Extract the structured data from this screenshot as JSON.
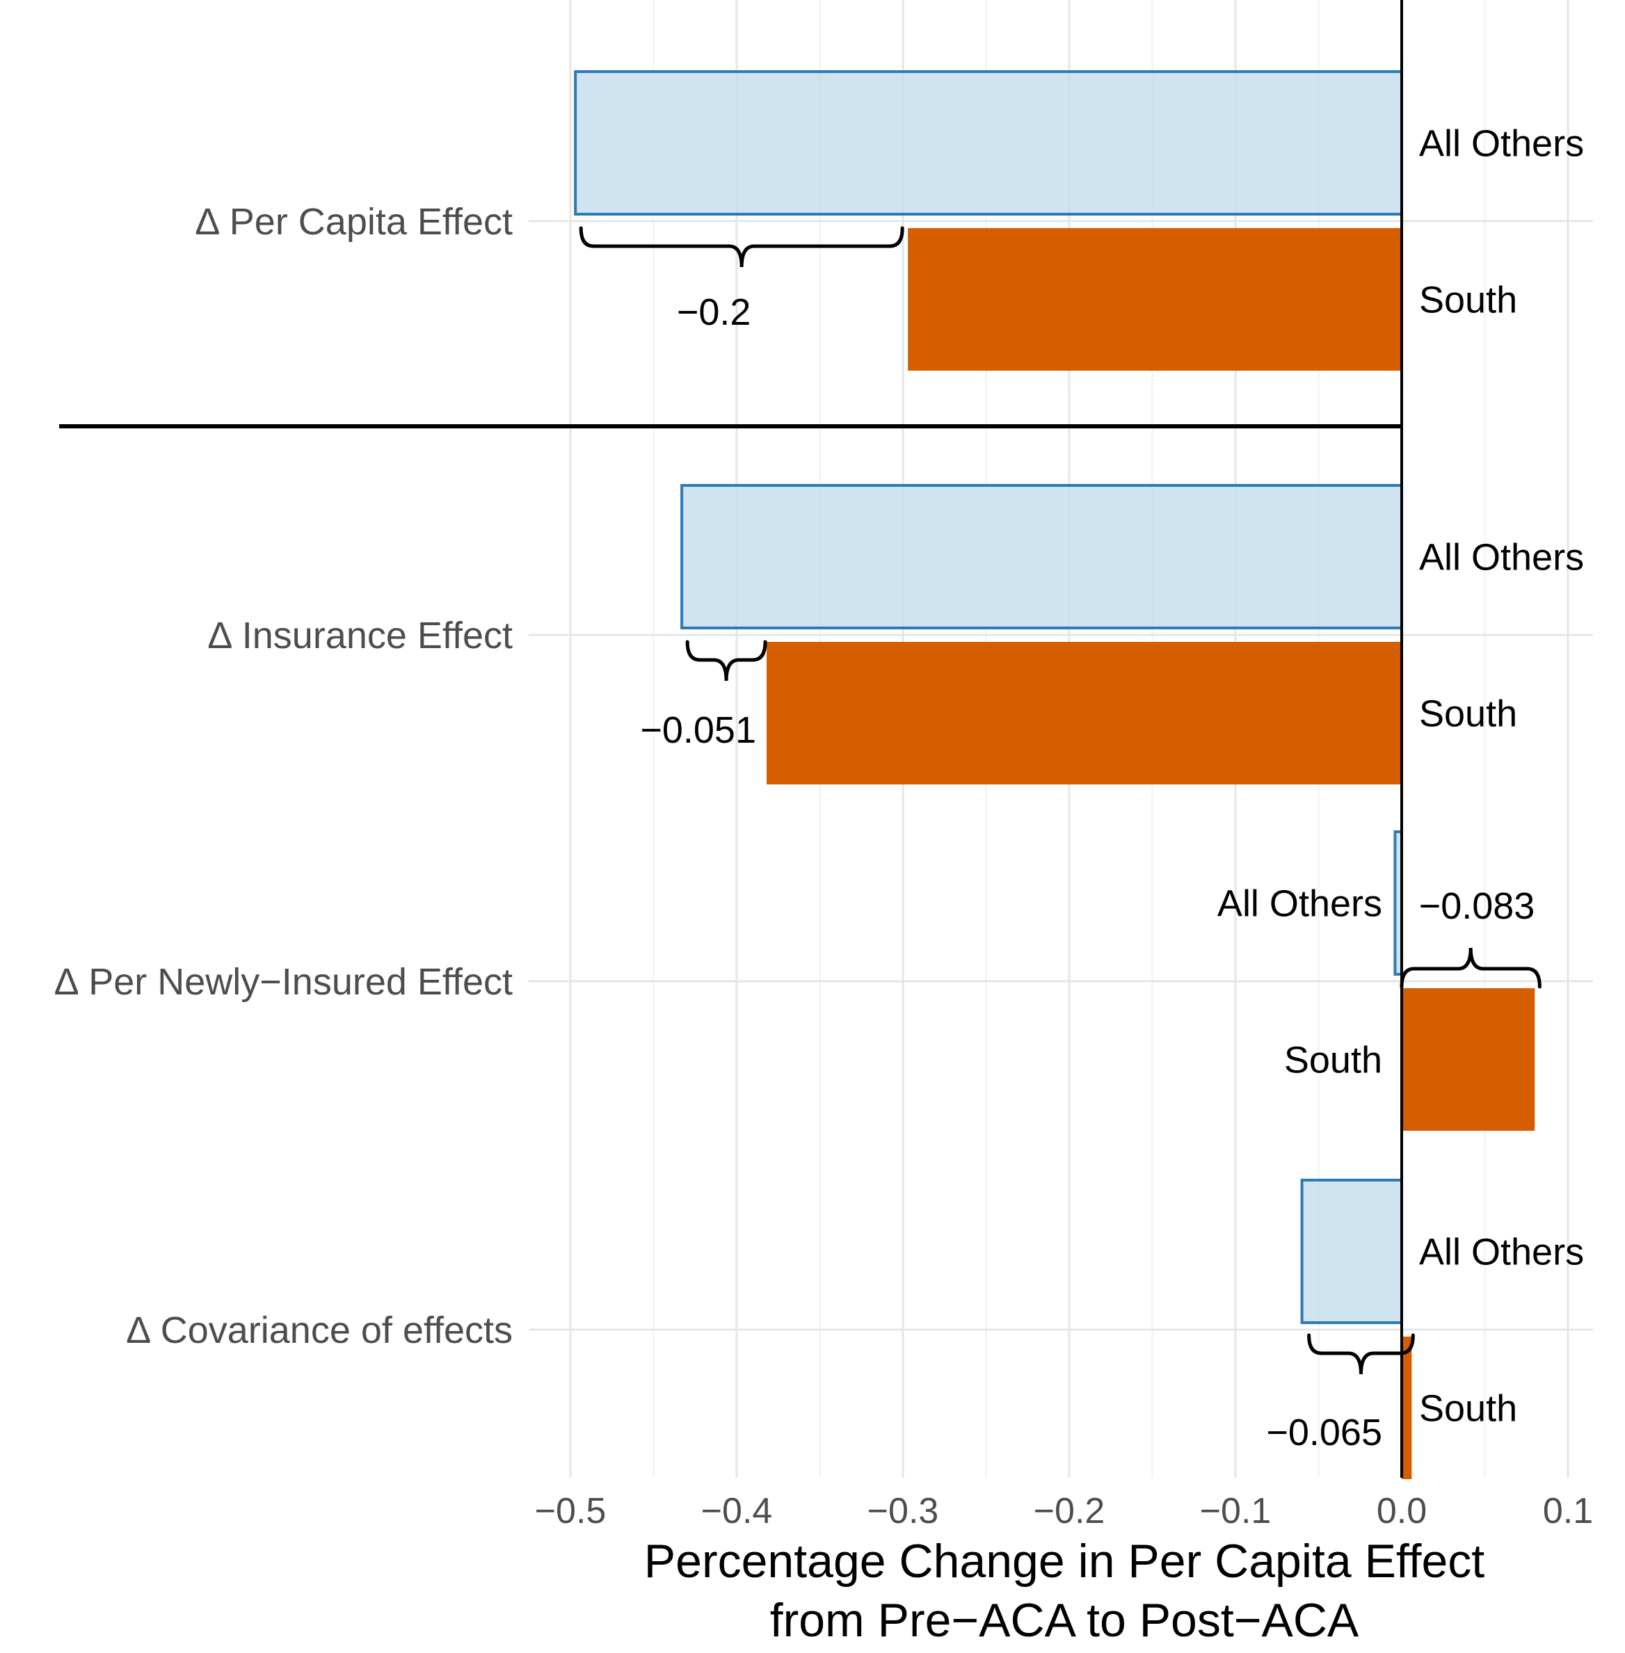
{
  "chart_data": {
    "type": "bar",
    "orientation": "horizontal",
    "xlabel": [
      "Percentage Change in Per Capita Effect",
      "from Pre−ACA to Post−ACA"
    ],
    "xlim": [
      -0.5,
      0.1
    ],
    "xticks": [
      -0.5,
      -0.4,
      -0.3,
      -0.2,
      -0.1,
      0.0,
      0.1
    ],
    "xtick_labels": [
      "−0.5",
      "−0.4",
      "−0.3",
      "−0.2",
      "−0.1",
      "0.0",
      "0.1"
    ],
    "grid": true,
    "categories": [
      "∆ Per Capita Effect",
      "∆ Insurance Effect",
      "∆ Per Newly−Insured Effect",
      "∆ Covariance of effects"
    ],
    "series": [
      {
        "name": "All Others",
        "color_fill": "#c1dcec",
        "color_edge": "#2b7bb9",
        "values": [
          -0.497,
          -0.433,
          -0.004,
          -0.06
        ]
      },
      {
        "name": "South",
        "color_fill": "#d55e00",
        "values": [
          -0.297,
          -0.382,
          0.08,
          0.006
        ]
      }
    ],
    "differences": [
      "−0.2",
      "−0.051",
      "−0.083",
      "−0.065"
    ]
  }
}
